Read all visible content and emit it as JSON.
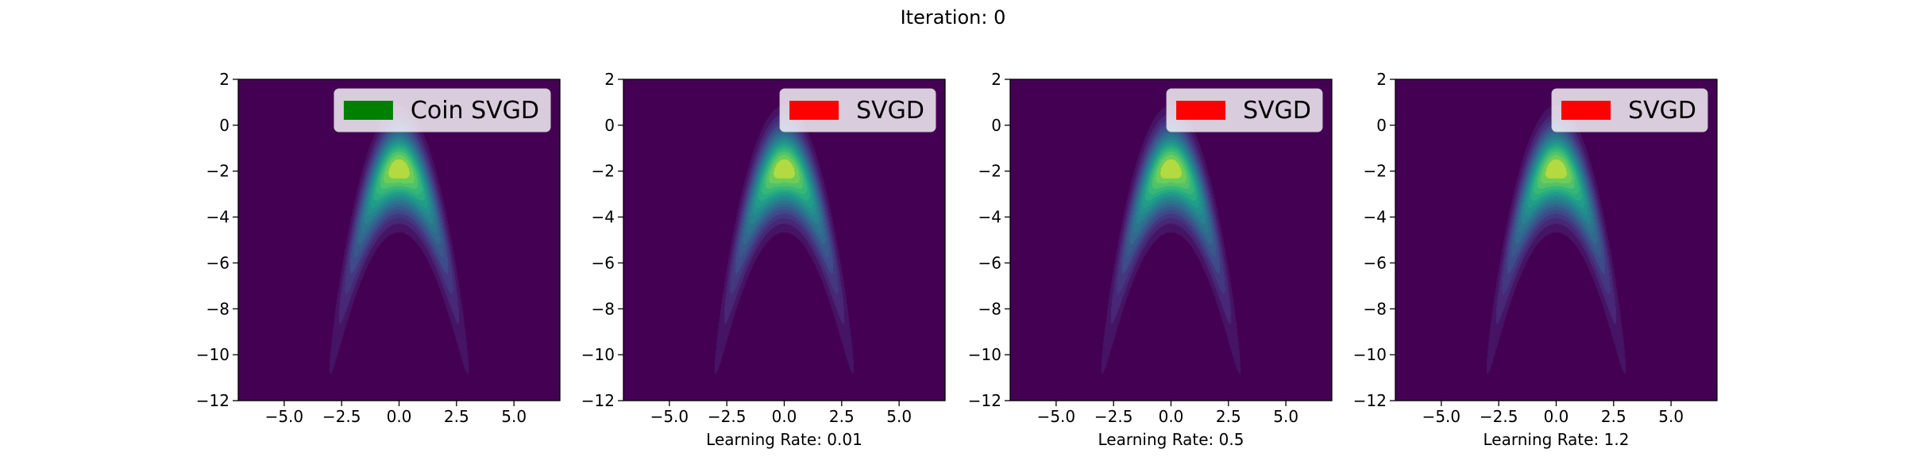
{
  "figure": {
    "suptitle": "Iteration: 0",
    "colormap": "viridis",
    "background_color": "#440154"
  },
  "chart_data": [
    {
      "type": "heatmap",
      "title": "",
      "xlabel": "",
      "ylabel": "",
      "xlim": [
        -7,
        7
      ],
      "ylim": [
        -12,
        2
      ],
      "xticks": [
        "−5.0",
        "−2.5",
        "0.0",
        "2.5",
        "5.0"
      ],
      "xtick_values": [
        -5,
        -2.5,
        0,
        2.5,
        5
      ],
      "yticks": [
        "2",
        "0",
        "−2",
        "−4",
        "−6",
        "−8",
        "−10",
        "−12"
      ],
      "ytick_values": [
        2,
        0,
        -2,
        -4,
        -6,
        -8,
        -10,
        -12
      ],
      "density": "banana-shaped (Rosenbrock-like) target density, peak near (0, -2)",
      "grid": false,
      "legend": {
        "location": "upper right",
        "entries": [
          {
            "label": "Coin SVGD",
            "color": "#008000"
          }
        ]
      }
    },
    {
      "type": "heatmap",
      "title": "",
      "xlabel": "Learning Rate: 0.01",
      "ylabel": "",
      "xlim": [
        -7,
        7
      ],
      "ylim": [
        -12,
        2
      ],
      "xticks": [
        "−5.0",
        "−2.5",
        "0.0",
        "2.5",
        "5.0"
      ],
      "xtick_values": [
        -5,
        -2.5,
        0,
        2.5,
        5
      ],
      "yticks": [
        "2",
        "0",
        "−2",
        "−4",
        "−6",
        "−8",
        "−10",
        "−12"
      ],
      "ytick_values": [
        2,
        0,
        -2,
        -4,
        -6,
        -8,
        -10,
        -12
      ],
      "density": "banana-shaped (Rosenbrock-like) target density, peak near (0, -2)",
      "grid": false,
      "legend": {
        "location": "upper right",
        "entries": [
          {
            "label": "SVGD",
            "color": "#ff0000"
          }
        ]
      }
    },
    {
      "type": "heatmap",
      "title": "",
      "xlabel": "Learning Rate: 0.5",
      "ylabel": "",
      "xlim": [
        -7,
        7
      ],
      "ylim": [
        -12,
        2
      ],
      "xticks": [
        "−5.0",
        "−2.5",
        "0.0",
        "2.5",
        "5.0"
      ],
      "xtick_values": [
        -5,
        -2.5,
        0,
        2.5,
        5
      ],
      "yticks": [
        "2",
        "0",
        "−2",
        "−4",
        "−6",
        "−8",
        "−10",
        "−12"
      ],
      "ytick_values": [
        2,
        0,
        -2,
        -4,
        -6,
        -8,
        -10,
        -12
      ],
      "density": "banana-shaped (Rosenbrock-like) target density, peak near (0, -2)",
      "grid": false,
      "legend": {
        "location": "upper right",
        "entries": [
          {
            "label": "SVGD",
            "color": "#ff0000"
          }
        ]
      }
    },
    {
      "type": "heatmap",
      "title": "",
      "xlabel": "Learning Rate: 1.2",
      "ylabel": "",
      "xlim": [
        -7,
        7
      ],
      "ylim": [
        -12,
        2
      ],
      "xticks": [
        "−5.0",
        "−2.5",
        "0.0",
        "2.5",
        "5.0"
      ],
      "xtick_values": [
        -5,
        -2.5,
        0,
        2.5,
        5
      ],
      "yticks": [
        "2",
        "0",
        "−2",
        "−4",
        "−6",
        "−8",
        "−10",
        "−12"
      ],
      "ytick_values": [
        2,
        0,
        -2,
        -4,
        -6,
        -8,
        -10,
        -12
      ],
      "density": "banana-shaped (Rosenbrock-like) target density, peak near (0, -2)",
      "grid": false,
      "legend": {
        "location": "upper right",
        "entries": [
          {
            "label": "SVGD",
            "color": "#ff0000"
          }
        ]
      }
    }
  ]
}
